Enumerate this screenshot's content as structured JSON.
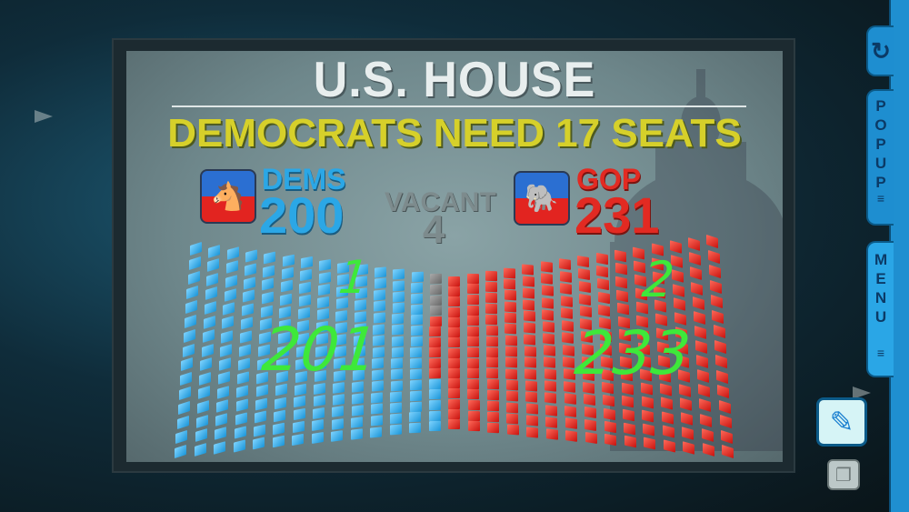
{
  "header": {
    "title": "U.S. HOUSE",
    "subtitle": "DEMOCRATS NEED 17 SEATS"
  },
  "parties": {
    "dems": {
      "label": "DEMS",
      "seats": "200",
      "icon": "donkey-icon",
      "color": "#2ba7e6"
    },
    "vacant": {
      "label": "VACANT",
      "seats": "4",
      "color": "#7d8b8d"
    },
    "gop": {
      "label": "GOP",
      "seats": "231",
      "icon": "elephant-icon",
      "color": "#e22a22"
    }
  },
  "seat_chart": {
    "dem": 200,
    "vacant": 4,
    "gop": 231
  },
  "annotations": {
    "dem_increment": "1",
    "dem_total": "201",
    "gop_increment": "2",
    "gop_total": "233",
    "color": "#3ee83a"
  },
  "sidebar": {
    "undo_icon": "undo-icon",
    "popup_label": "POPUP",
    "menu_label": "MENU",
    "pen_icon": "pencil-icon",
    "layers_icon": "layers-icon"
  }
}
